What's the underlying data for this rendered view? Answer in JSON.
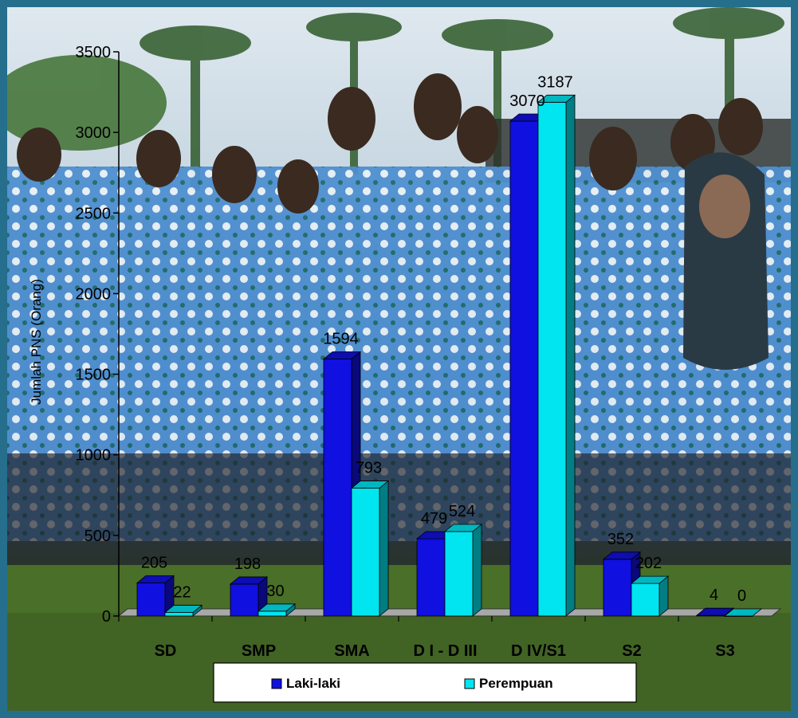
{
  "chart_data": {
    "type": "bar",
    "style": "3d-clustered",
    "categories": [
      "SD",
      "SMP",
      "SMA",
      "D I - D III",
      "D IV/S1",
      "S2",
      "S3"
    ],
    "series": [
      {
        "name": "Laki-laki",
        "color": "#1010e0",
        "values": [
          205,
          198,
          1594,
          479,
          3070,
          352,
          4
        ]
      },
      {
        "name": "Perempuan",
        "color": "#00e5f0",
        "values": [
          22,
          30,
          793,
          524,
          3187,
          202,
          0
        ]
      }
    ],
    "ylabel": "Jumlah PNS (Orang)",
    "xlabel": "",
    "ylim": [
      0,
      3500
    ],
    "yticks": [
      0,
      500,
      1000,
      1500,
      2000,
      2500,
      3000,
      3500
    ],
    "legend_position": "bottom",
    "grid": false,
    "background": "photograph"
  }
}
